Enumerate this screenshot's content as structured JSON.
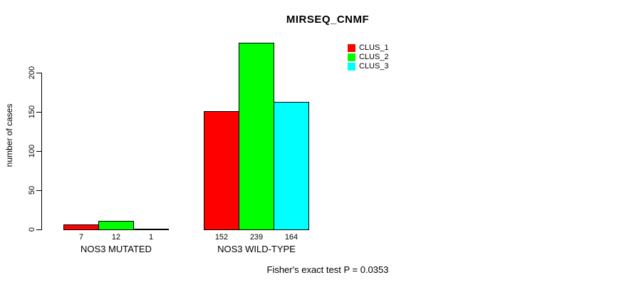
{
  "title": "MIRSEQ_CNMF",
  "ylabel": "number of cases",
  "footer": "Fisher's exact test P = 0.0353",
  "chart_data": {
    "type": "bar",
    "title": "MIRSEQ_CNMF",
    "xlabel": "",
    "ylabel": "number of cases",
    "categories": [
      "NOS3 MUTATED",
      "NOS3 WILD-TYPE"
    ],
    "series": [
      {
        "name": "CLUS_1",
        "color": "#ff0000",
        "values": [
          7,
          152
        ]
      },
      {
        "name": "CLUS_2",
        "color": "#00ff00",
        "values": [
          12,
          239
        ]
      },
      {
        "name": "CLUS_3",
        "color": "#00ffff",
        "values": [
          1,
          164
        ]
      }
    ],
    "yticks": [
      0,
      50,
      100,
      150,
      200
    ],
    "ylim": [
      0,
      220
    ],
    "grid": false,
    "legend_position": "top-right",
    "bar_outline_color": "#000000",
    "value_labels_shown": true,
    "annotation": "Fisher's exact test P = 0.0353"
  }
}
